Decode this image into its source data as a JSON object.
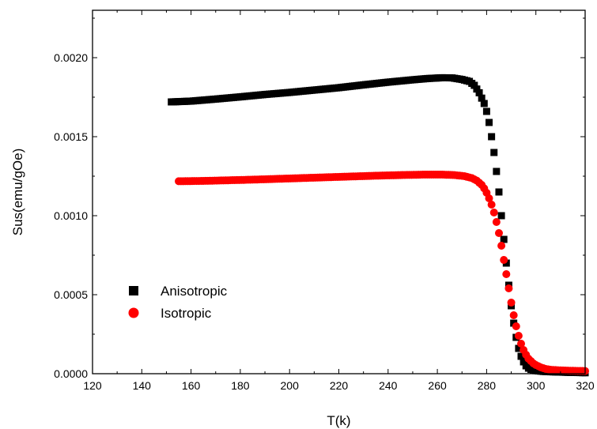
{
  "chart_data": {
    "type": "scatter",
    "xlabel": "T(k)",
    "ylabel": "Sus(emu/gOe)",
    "xlim": [
      120,
      320
    ],
    "ylim": [
      0,
      0.0023
    ],
    "x_ticks": [
      120,
      140,
      160,
      180,
      200,
      220,
      240,
      260,
      280,
      300,
      320
    ],
    "x_tick_labels": [
      "120",
      "140",
      "160",
      "180",
      "200",
      "220",
      "240",
      "260",
      "280",
      "300",
      "320"
    ],
    "y_ticks": [
      0,
      0.0005,
      0.001,
      0.0015,
      0.002
    ],
    "y_tick_labels": [
      "0.0000",
      "0.0005",
      "0.0010",
      "0.0015",
      "0.0020"
    ],
    "grid": false,
    "legend_position": "lower-left",
    "series": [
      {
        "name": "Anisotropic",
        "marker": "square",
        "color": "#000000",
        "points": [
          [
            152,
            0.00172
          ],
          [
            160,
            0.001725
          ],
          [
            170,
            0.001738
          ],
          [
            180,
            0.001752
          ],
          [
            190,
            0.001767
          ],
          [
            200,
            0.00178
          ],
          [
            210,
            0.001795
          ],
          [
            220,
            0.00181
          ],
          [
            230,
            0.001828
          ],
          [
            240,
            0.001845
          ],
          [
            250,
            0.00186
          ],
          [
            256,
            0.001868
          ],
          [
            262,
            0.001873
          ],
          [
            266,
            0.001872
          ],
          [
            270,
            0.001862
          ],
          [
            273,
            0.00185
          ],
          [
            275,
            0.001825
          ],
          [
            277,
            0.001778
          ],
          [
            279,
            0.00171
          ],
          [
            280,
            0.00166
          ],
          [
            281,
            0.00159
          ],
          [
            282,
            0.0015
          ],
          [
            283,
            0.0014
          ],
          [
            284,
            0.00128
          ],
          [
            285,
            0.00115
          ],
          [
            286,
            0.001
          ],
          [
            287,
            0.00085
          ],
          [
            288,
            0.0007
          ],
          [
            289,
            0.00056
          ],
          [
            290,
            0.00043
          ],
          [
            291,
            0.00032
          ],
          [
            292,
            0.00023
          ],
          [
            293,
            0.00016
          ],
          [
            294,
            0.00011
          ],
          [
            295,
            7.5e-05
          ],
          [
            296,
            5e-05
          ],
          [
            297,
            3.5e-05
          ],
          [
            298,
            2.7e-05
          ],
          [
            300,
            1.9e-05
          ],
          [
            303,
            1.4e-05
          ],
          [
            306,
            1.2e-05
          ],
          [
            310,
            1e-05
          ],
          [
            314,
            8e-06
          ],
          [
            318,
            7e-06
          ],
          [
            320,
            6e-06
          ]
        ]
      },
      {
        "name": "Isotropic",
        "marker": "circle",
        "color": "#ff0000",
        "points": [
          [
            155,
            0.001218
          ],
          [
            165,
            0.00122
          ],
          [
            175,
            0.001224
          ],
          [
            185,
            0.001228
          ],
          [
            195,
            0.001233
          ],
          [
            205,
            0.001238
          ],
          [
            215,
            0.001243
          ],
          [
            225,
            0.001248
          ],
          [
            235,
            0.001253
          ],
          [
            245,
            0.001257
          ],
          [
            255,
            0.00126
          ],
          [
            262,
            0.00126
          ],
          [
            267,
            0.001257
          ],
          [
            271,
            0.00125
          ],
          [
            274,
            0.001238
          ],
          [
            276,
            0.001222
          ],
          [
            278,
            0.001195
          ],
          [
            279,
            0.001173
          ],
          [
            280,
            0.001145
          ],
          [
            281,
            0.00111
          ],
          [
            282,
            0.00107
          ],
          [
            283,
            0.00102
          ],
          [
            284,
            0.00096
          ],
          [
            285,
            0.00089
          ],
          [
            286,
            0.00081
          ],
          [
            287,
            0.00072
          ],
          [
            288,
            0.00063
          ],
          [
            289,
            0.00054
          ],
          [
            290,
            0.00045
          ],
          [
            291,
            0.00037
          ],
          [
            292,
            0.0003
          ],
          [
            293,
            0.00024
          ],
          [
            294,
            0.00019
          ],
          [
            295,
            0.00015
          ],
          [
            296,
            0.00012
          ],
          [
            297,
            9.5e-05
          ],
          [
            298,
            8e-05
          ],
          [
            299,
            6.5e-05
          ],
          [
            300,
            5.5e-05
          ],
          [
            302,
            4e-05
          ],
          [
            304,
            3e-05
          ],
          [
            306,
            2.5e-05
          ],
          [
            309,
            2.2e-05
          ],
          [
            312,
            2e-05
          ],
          [
            316,
            1.8e-05
          ],
          [
            320,
            1.7e-05
          ]
        ]
      }
    ]
  }
}
